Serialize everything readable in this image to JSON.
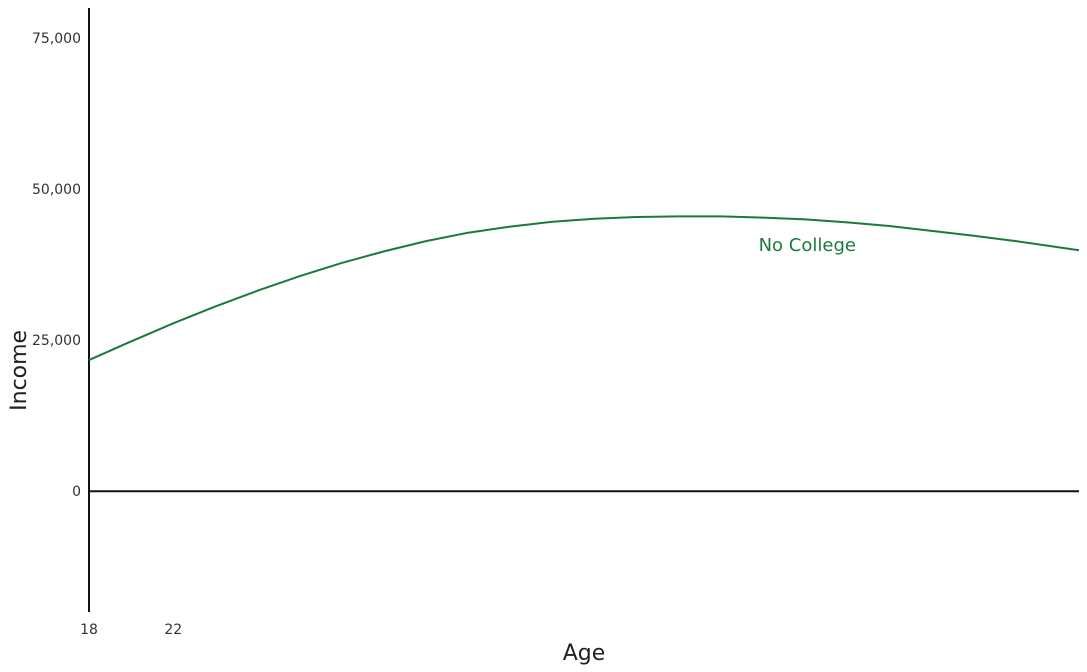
{
  "chart_data": {
    "type": "line",
    "xlabel": "Age",
    "ylabel": "Income",
    "xlim": [
      18,
      65
    ],
    "ylim": [
      -20000,
      80000
    ],
    "xticks": [
      18,
      22
    ],
    "yticks": [
      0,
      25000,
      50000,
      75000
    ],
    "ytick_labels": [
      "0",
      "25,000",
      "50,000",
      "75,000"
    ],
    "grid": false,
    "series": [
      {
        "name": "No College",
        "color": "#1a7a3a",
        "x": [
          18,
          20,
          22,
          24,
          26,
          28,
          30,
          32,
          34,
          36,
          38,
          40,
          42,
          44,
          46,
          48,
          50,
          52,
          54,
          56,
          58,
          60,
          62,
          65
        ],
        "y": [
          21700,
          24800,
          27800,
          30600,
          33200,
          35600,
          37800,
          39700,
          41400,
          42800,
          43800,
          44600,
          45100,
          45400,
          45500,
          45500,
          45300,
          45000,
          44500,
          43900,
          43100,
          42300,
          41400,
          39900
        ]
      }
    ]
  }
}
